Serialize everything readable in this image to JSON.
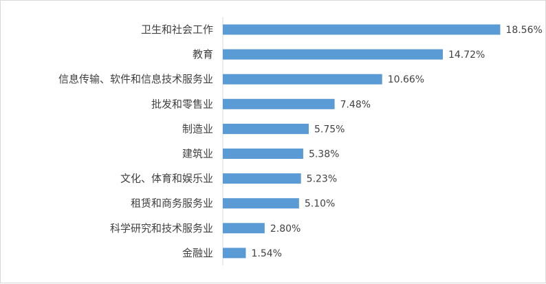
{
  "colors": {
    "bar": "#5b9bd5",
    "axis": "#d9d9d9",
    "text": "#404040",
    "background": "#ffffff"
  },
  "chart_data": {
    "type": "bar",
    "orientation": "horizontal",
    "title": "",
    "xlabel": "",
    "ylabel": "",
    "categories": [
      "卫生和社会工作",
      "教育",
      "信息传输、软件和信息技术服务业",
      "批发和零售业",
      "制造业",
      "建筑业",
      "文化、体育和娱乐业",
      "租赁和商务服务业",
      "科学研究和技术服务业",
      "金融业"
    ],
    "values": [
      18.56,
      14.72,
      10.66,
      7.48,
      5.75,
      5.38,
      5.23,
      5.1,
      2.8,
      1.54
    ],
    "data_labels": [
      "18.56%",
      "14.72%",
      "10.66%",
      "7.48%",
      "5.75%",
      "5.38%",
      "5.23%",
      "5.10%",
      "2.80%",
      "1.54%"
    ],
    "xlim": [
      0,
      19
    ],
    "grid": false,
    "legend": "none"
  }
}
